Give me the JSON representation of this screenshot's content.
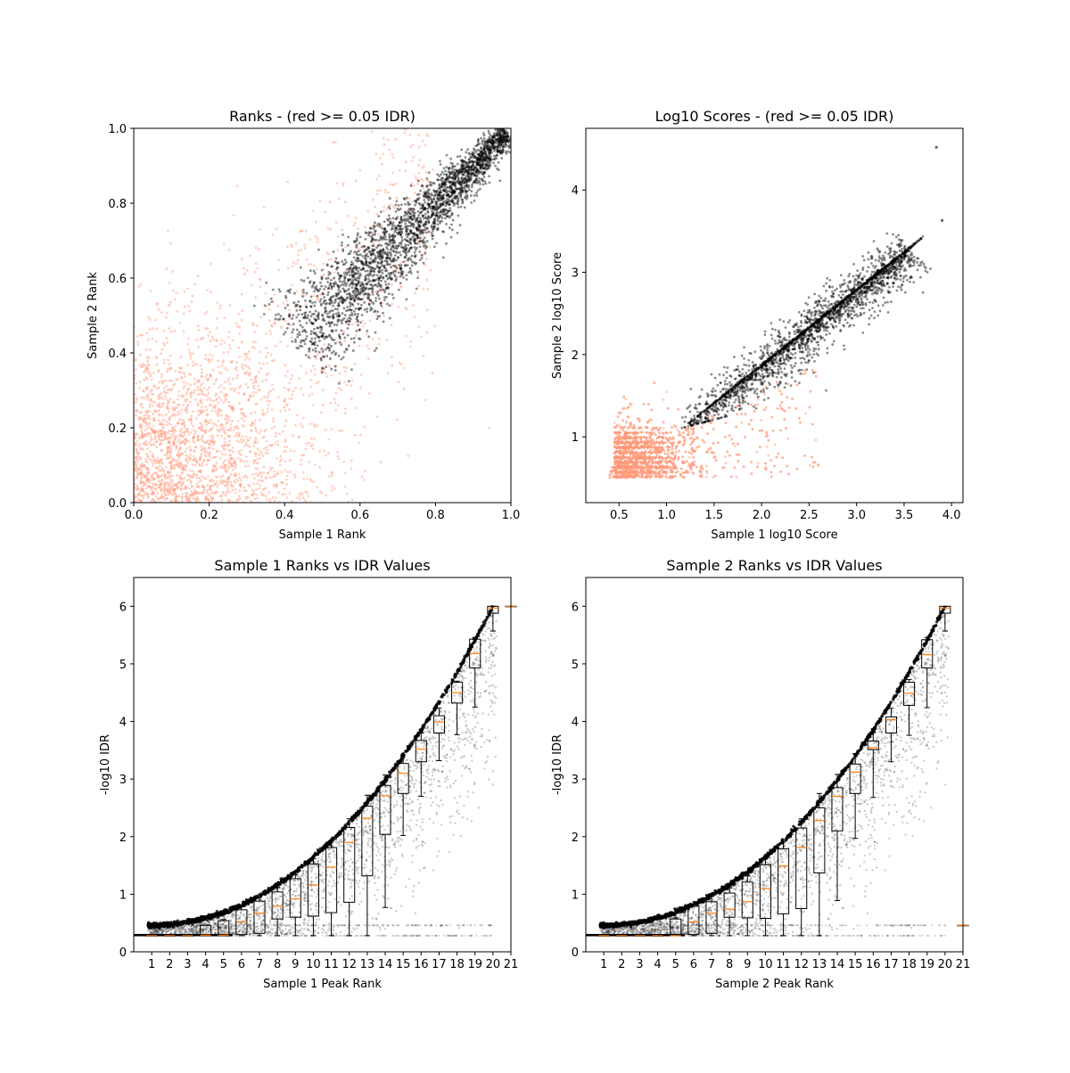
{
  "colors": {
    "pass": "#000000",
    "fail": "#ff9a7a",
    "median": "#ff7f0e",
    "box": "#000000"
  },
  "chart_data": [
    {
      "type": "scatter",
      "title": "Ranks - (red >= 0.05 IDR)",
      "xlabel": "Sample 1 Rank",
      "ylabel": "Sample 2 Rank",
      "xlim": [
        0.0,
        1.0
      ],
      "ylim": [
        0.0,
        1.0
      ],
      "xticks": [
        "0.0",
        "0.2",
        "0.4",
        "0.6",
        "0.8",
        "1.0"
      ],
      "yticks": [
        "0.0",
        "0.2",
        "0.4",
        "0.6",
        "0.8",
        "1.0"
      ],
      "grid": false,
      "series": [
        {
          "color": "black",
          "region": {
            "kind": "diagonal-band",
            "from": [
              0.42,
              0.41
            ],
            "to": [
              1.0,
              1.0
            ],
            "halfwidth_start": 0.08,
            "halfwidth_end": 0.02
          }
        },
        {
          "color": "salmon",
          "region": {
            "kind": "cloud",
            "center": [
              0.15,
              0.15
            ],
            "extends_to": [
              0.75,
              0.75
            ]
          }
        }
      ]
    },
    {
      "type": "scatter",
      "title": "Log10 Scores - (red >= 0.05 IDR)",
      "xlabel": "Sample 1 log10 Score",
      "ylabel": "Sample 2 log10 Score",
      "xlim": [
        0.15,
        4.12
      ],
      "ylim": [
        0.2,
        4.75
      ],
      "xticks": [
        "0.5",
        "1.0",
        "1.5",
        "2.0",
        "2.5",
        "3.0",
        "3.5",
        "4.0"
      ],
      "yticks": [
        "1",
        "2",
        "3",
        "4"
      ],
      "grid": false,
      "series": [
        {
          "color": "black",
          "region": {
            "kind": "diagonal-band",
            "from": [
              1.18,
              1.12
            ],
            "to": [
              3.6,
              3.35
            ],
            "halfwidth_start": 0.15,
            "halfwidth_end": 0.15
          }
        },
        {
          "color": "salmon",
          "region": {
            "kind": "cloud",
            "center": [
              0.8,
              0.75
            ],
            "extends_to": [
              2.5,
              2.4
            ]
          }
        }
      ],
      "outliers": [
        [
          3.84,
          4.52
        ],
        [
          3.9,
          3.63
        ]
      ]
    },
    {
      "type": "scatter",
      "title": "Sample 1 Ranks vs IDR Values",
      "xlabel": "Sample 1 Peak Rank",
      "ylabel": "-log10 IDR",
      "xlim": [
        0,
        21
      ],
      "ylim": [
        0,
        6.5
      ],
      "xticks": [
        "1",
        "2",
        "3",
        "4",
        "5",
        "6",
        "7",
        "8",
        "9",
        "10",
        "11",
        "12",
        "13",
        "14",
        "15",
        "16",
        "17",
        "18",
        "19",
        "20",
        "21"
      ],
      "yticks": [
        "0",
        "1",
        "2",
        "3",
        "4",
        "5",
        "6"
      ],
      "grid": false,
      "boxplot": {
        "positions": [
          1,
          2,
          3,
          4,
          5,
          6,
          7,
          8,
          9,
          10,
          11,
          12,
          13,
          14,
          15,
          16,
          17,
          18,
          19,
          20,
          21
        ],
        "median": [
          0.28,
          0.28,
          0.28,
          0.29,
          0.29,
          0.52,
          0.67,
          0.79,
          0.92,
          1.16,
          1.47,
          1.9,
          2.32,
          2.71,
          3.1,
          3.52,
          3.99,
          4.5,
          5.18,
          5.97,
          6.0
        ],
        "q1": [
          0.28,
          0.28,
          0.28,
          0.28,
          0.28,
          0.3,
          0.32,
          0.57,
          0.6,
          0.62,
          0.68,
          0.86,
          1.32,
          2.04,
          2.75,
          3.3,
          3.8,
          4.32,
          4.93,
          5.88,
          6.0
        ],
        "q3": [
          0.28,
          0.28,
          0.28,
          0.46,
          0.54,
          0.73,
          0.88,
          1.04,
          1.27,
          1.52,
          1.81,
          2.16,
          2.53,
          2.89,
          3.27,
          3.67,
          4.1,
          4.68,
          5.43,
          6.0,
          6.0
        ],
        "whisker_low": [
          0.28,
          0.28,
          0.28,
          0.28,
          0.28,
          0.28,
          0.28,
          0.28,
          0.28,
          0.28,
          0.28,
          0.28,
          0.28,
          0.77,
          2.02,
          2.7,
          3.32,
          3.77,
          4.25,
          5.57,
          6.0
        ],
        "whisker_high": [
          0.28,
          0.28,
          0.28,
          0.46,
          0.56,
          0.8,
          0.95,
          1.12,
          1.34,
          1.62,
          1.93,
          2.31,
          2.72,
          3.07,
          3.42,
          3.8,
          4.23,
          4.7,
          5.46,
          6.0,
          6.0
        ]
      }
    },
    {
      "type": "scatter",
      "title": "Sample 2 Ranks vs IDR Values",
      "xlabel": "Sample 2 Peak Rank",
      "ylabel": "-log10 IDR",
      "xlim": [
        0,
        21
      ],
      "ylim": [
        0,
        6.5
      ],
      "xticks": [
        "1",
        "2",
        "3",
        "4",
        "5",
        "6",
        "7",
        "8",
        "9",
        "10",
        "11",
        "12",
        "13",
        "14",
        "15",
        "16",
        "17",
        "18",
        "19",
        "20",
        "21"
      ],
      "yticks": [
        "0",
        "1",
        "2",
        "3",
        "4",
        "5",
        "6"
      ],
      "grid": false,
      "boxplot": {
        "positions": [
          1,
          2,
          3,
          4,
          5,
          6,
          7,
          8,
          9,
          10,
          11,
          12,
          13,
          14,
          15,
          16,
          17,
          18,
          19,
          20,
          21
        ],
        "median": [
          0.28,
          0.28,
          0.28,
          0.28,
          0.28,
          0.52,
          0.67,
          0.74,
          0.87,
          1.1,
          1.49,
          1.81,
          2.28,
          2.7,
          3.12,
          3.54,
          4.03,
          4.49,
          5.16,
          5.97,
          0.46
        ],
        "q1": [
          0.28,
          0.28,
          0.28,
          0.28,
          0.28,
          0.3,
          0.32,
          0.6,
          0.59,
          0.58,
          0.66,
          0.75,
          1.37,
          2.1,
          2.75,
          3.51,
          3.8,
          4.28,
          4.93,
          5.88,
          0.46
        ],
        "q3": [
          0.28,
          0.28,
          0.28,
          0.28,
          0.57,
          0.79,
          0.87,
          1.02,
          1.21,
          1.51,
          1.79,
          2.15,
          2.5,
          2.85,
          3.26,
          3.66,
          4.08,
          4.68,
          5.42,
          6.0,
          0.46
        ],
        "whisker_low": [
          0.28,
          0.28,
          0.28,
          0.28,
          0.28,
          0.28,
          0.28,
          0.28,
          0.28,
          0.28,
          0.28,
          0.28,
          0.28,
          0.89,
          1.97,
          2.68,
          3.3,
          3.76,
          4.24,
          5.57,
          0.46
        ],
        "whisker_high": [
          0.28,
          0.28,
          0.28,
          0.28,
          0.59,
          0.83,
          0.96,
          1.11,
          1.32,
          1.61,
          1.92,
          2.31,
          2.75,
          3.08,
          3.44,
          3.82,
          4.23,
          4.73,
          5.46,
          6.0,
          0.46
        ]
      }
    }
  ]
}
